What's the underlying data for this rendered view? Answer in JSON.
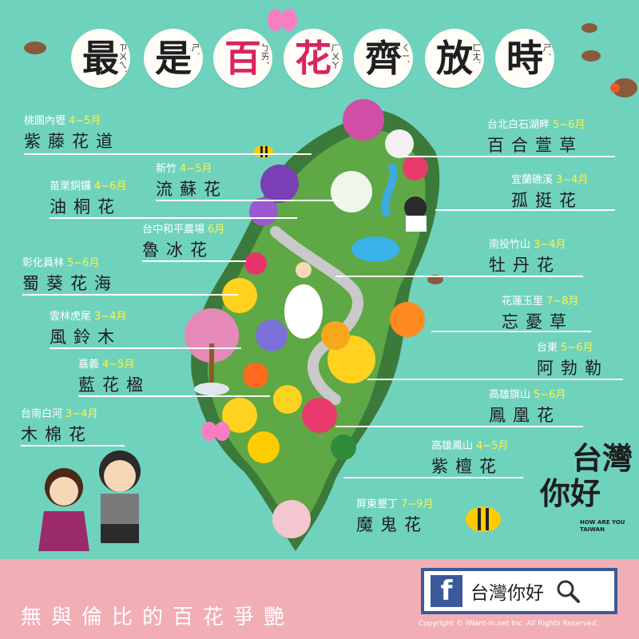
{
  "title": {
    "chars": [
      {
        "ch": "最",
        "zy": "ㄗㄨㄟˋ",
        "color": "#1f1f1f"
      },
      {
        "ch": "是",
        "zy": "ㄕˋ",
        "color": "#1f1f1f"
      },
      {
        "ch": "百",
        "zy": "ㄅㄞˇ",
        "color": "#d9245f"
      },
      {
        "ch": "花",
        "zy": "ㄏㄨㄚ",
        "color": "#d9245f"
      },
      {
        "ch": "齊",
        "zy": "ㄑㄧˊ",
        "color": "#1f1f1f"
      },
      {
        "ch": "放",
        "zy": "ㄈㄤˋ",
        "color": "#1f1f1f"
      },
      {
        "ch": "時",
        "zy": "ㄕˊ",
        "color": "#1f1f1f"
      }
    ]
  },
  "flowers_left": [
    {
      "loc": "桃園內壢",
      "mon": "4~5月",
      "name": "紫藤花道"
    },
    {
      "loc": "新竹",
      "mon": "4~5月",
      "name": "流蘇花"
    },
    {
      "loc": "苗栗銅鑼",
      "mon": "4~6月",
      "name": "油桐花"
    },
    {
      "loc": "台中和平農場",
      "mon": "6月",
      "name": "魯冰花"
    },
    {
      "loc": "彰化員林",
      "mon": "5~6月",
      "name": "蜀葵花海"
    },
    {
      "loc": "雲林虎尾",
      "mon": "3~4月",
      "name": "風鈴木"
    },
    {
      "loc": "嘉義",
      "mon": "4~5月",
      "name": "藍花楹"
    },
    {
      "loc": "台南白河",
      "mon": "3~4月",
      "name": "木棉花"
    }
  ],
  "flowers_right": [
    {
      "loc": "台北白石湖畔",
      "mon": "5~6月",
      "name": "百合萱草"
    },
    {
      "loc": "宜蘭礁溪",
      "mon": "3~4月",
      "name": "孤挺花"
    },
    {
      "loc": "南投竹山",
      "mon": "3~4月",
      "name": "牡丹花"
    },
    {
      "loc": "花蓮玉里",
      "mon": "7~8月",
      "name": "忘憂草"
    },
    {
      "loc": "台東",
      "mon": "5~6月",
      "name": "阿勃勒"
    },
    {
      "loc": "高雄旗山",
      "mon": "5~6月",
      "name": "鳳凰花"
    },
    {
      "loc": "高雄鳳山",
      "mon": "4~5月",
      "name": "紫檀花"
    },
    {
      "loc": "屏東墾丁",
      "mon": "7~9月",
      "name": "魔鬼花"
    }
  ],
  "brand": {
    "line1": "台灣",
    "line2": "你好",
    "en1": "HOW ARE YOU",
    "en2": "TAIWAN"
  },
  "footer": {
    "slogan": "無與倫比的百花爭艷",
    "fb_label": "台灣你好",
    "copyright": "Copyright © iWant-in.net Inc. All Rights Reserved."
  },
  "colors": {
    "background": "#6fd2bd",
    "band": "#f1aeb4",
    "facebook": "#3b5998",
    "accent": "#d9245f",
    "month": "#fff34a"
  }
}
